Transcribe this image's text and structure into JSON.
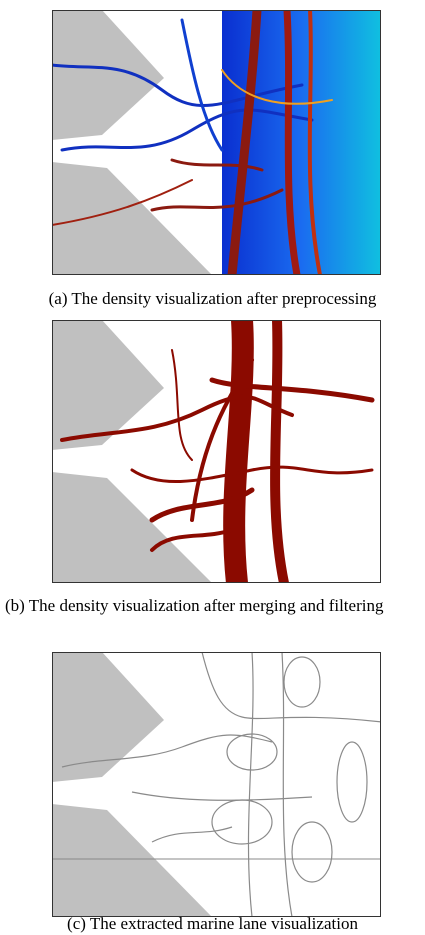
{
  "captions": {
    "a": "(a) The density visualization after preprocessing",
    "b": "(b) The density visualization after merging and filtering",
    "c": "(c) The extracted marine lane visualization"
  }
}
